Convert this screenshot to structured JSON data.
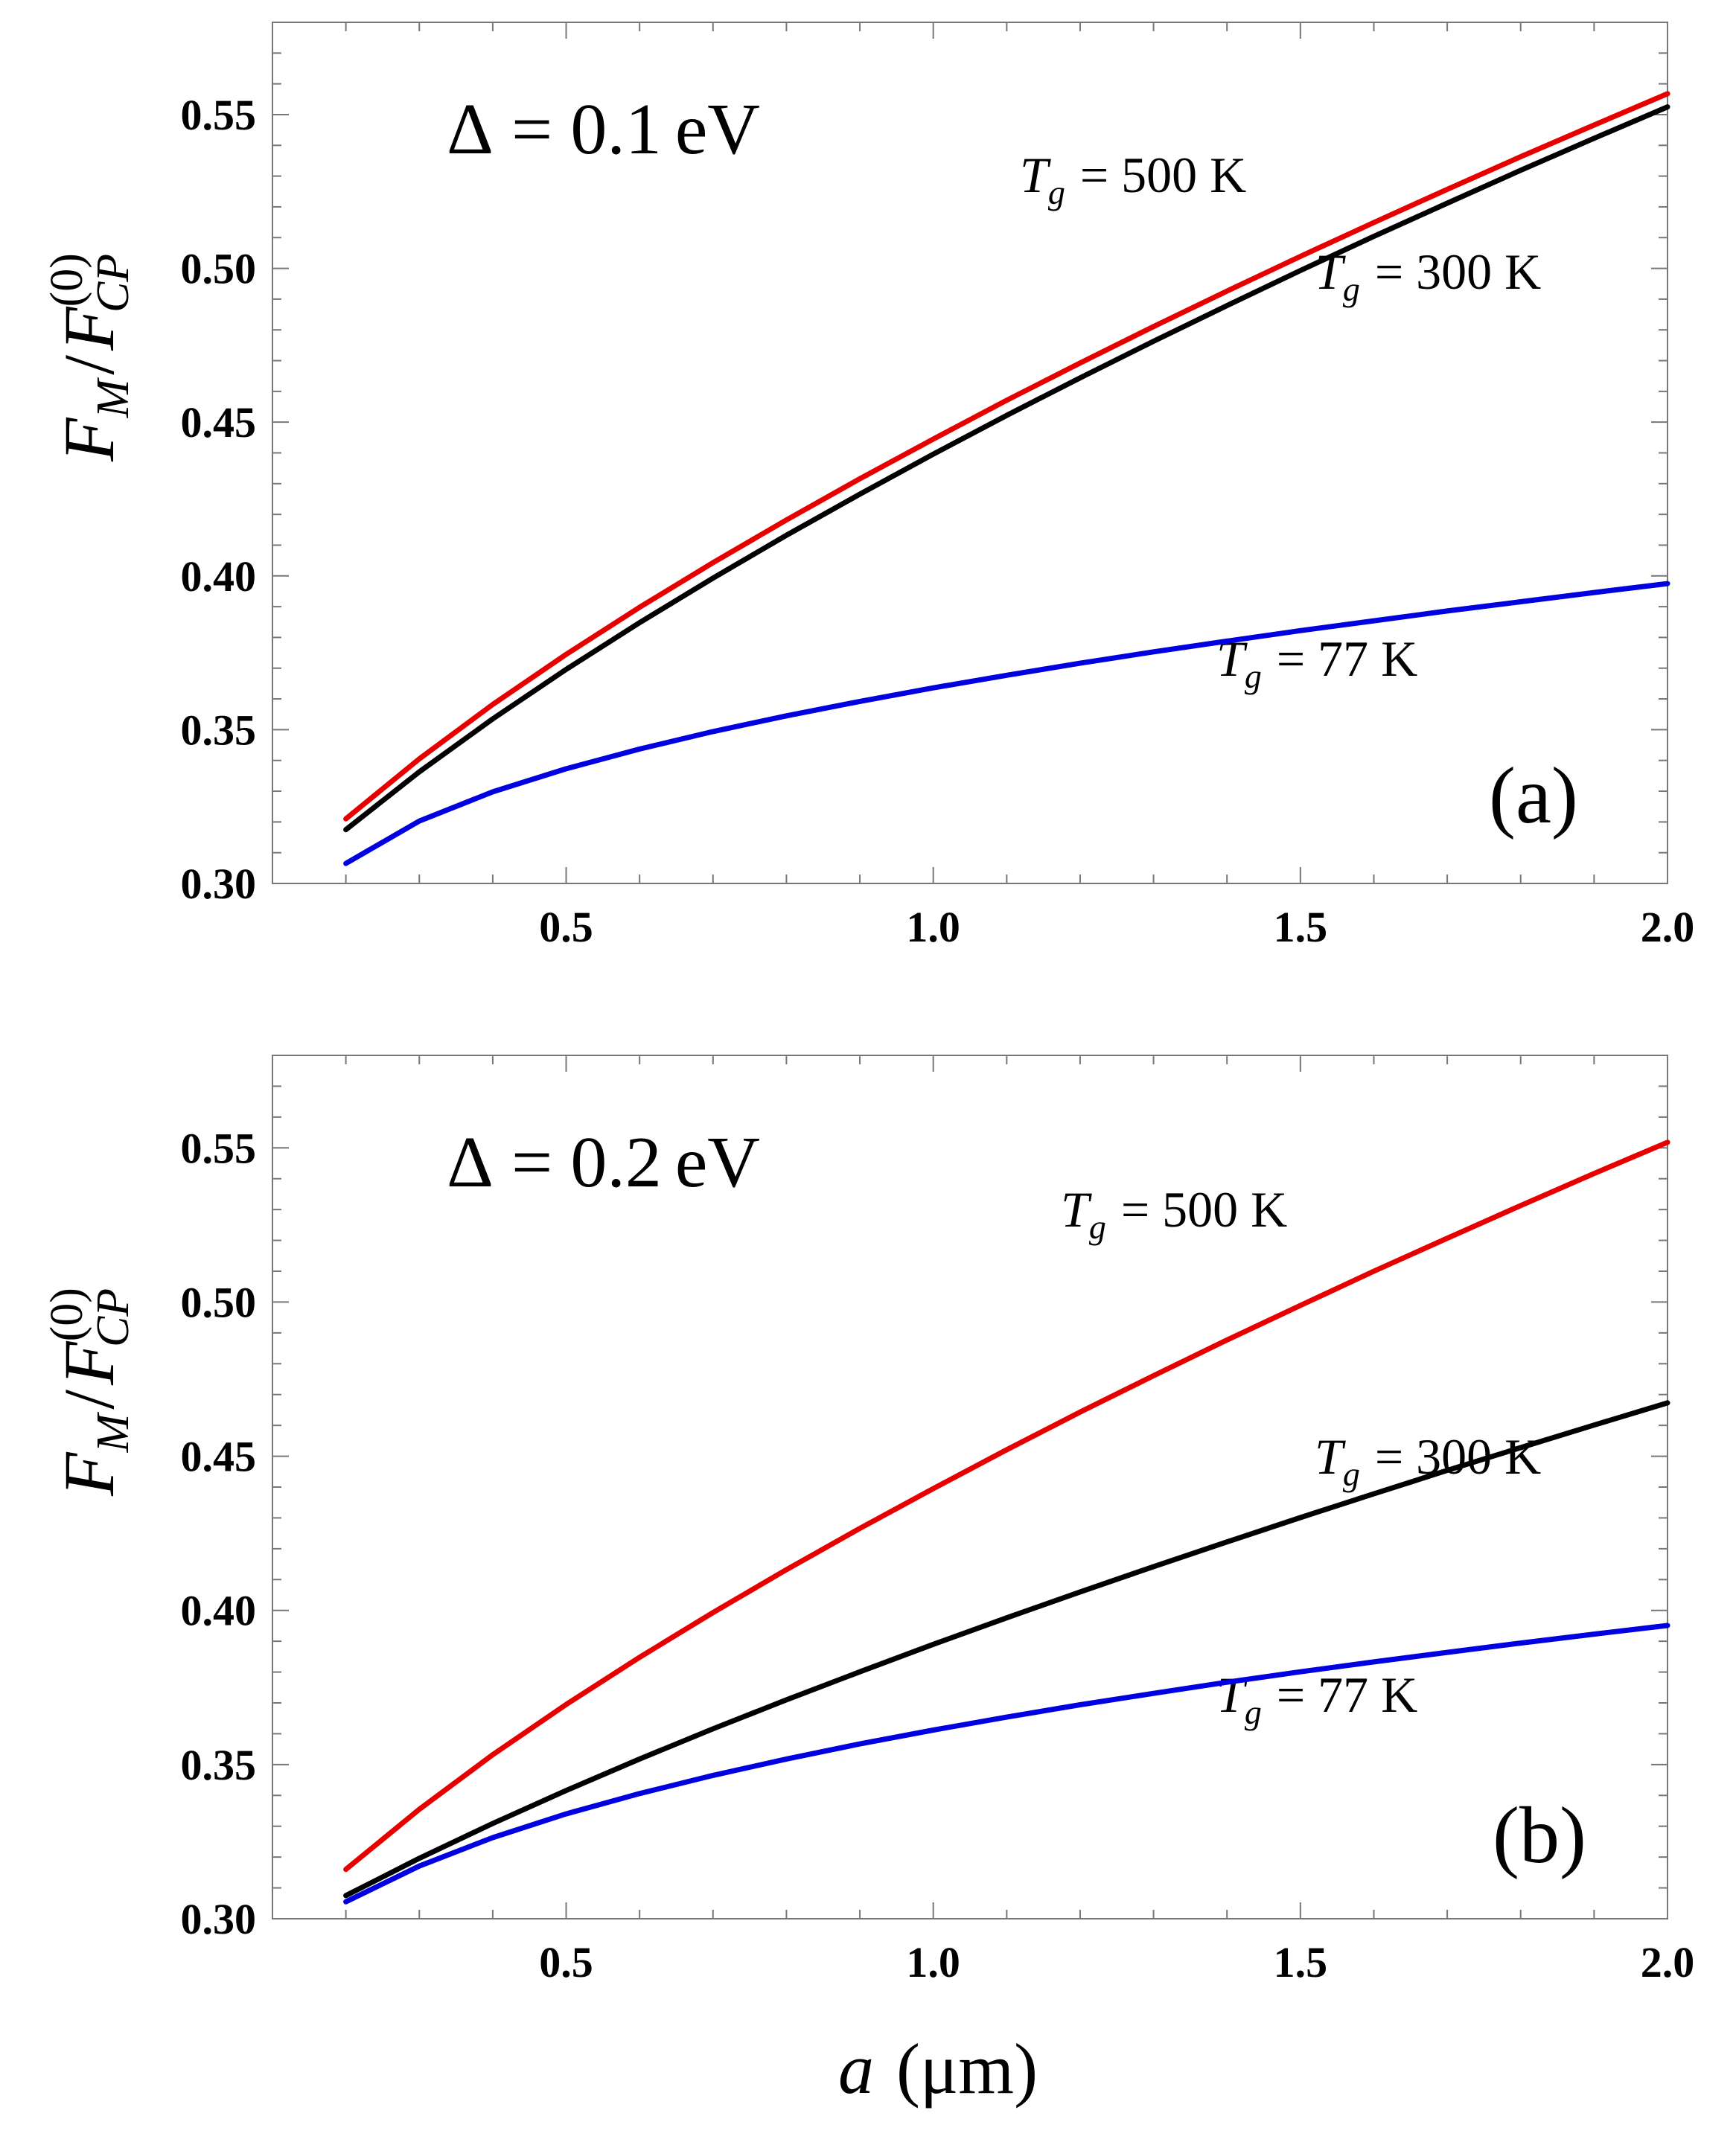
{
  "figure": {
    "x_axis_label_var": "a",
    "x_axis_label_unit": "(μm)",
    "y_axis_label_num": "F",
    "y_axis_label_num_sub": "M",
    "y_axis_label_slash": "/",
    "y_axis_label_den": "F",
    "y_axis_label_den_sup": "(0)",
    "y_axis_label_den_sub": "CP"
  },
  "chart_data": [
    {
      "type": "line",
      "panel_label": "(a)",
      "annotation": "Δ = 0.1 eV",
      "annotation_parts": {
        "symbol": "Δ",
        "eq": "=",
        "value": "0.1",
        "unit": "eV"
      },
      "xlim": [
        0.1,
        2.0
      ],
      "ylim": [
        0.3,
        0.58
      ],
      "xticks": [
        "0.5",
        "1.0",
        "1.5",
        "2.0"
      ],
      "yticks": [
        "0.30",
        "0.35",
        "0.40",
        "0.45",
        "0.50",
        "0.55"
      ],
      "xlabel": "a (μm)",
      "ylabel": "F_M / F_CP^(0)",
      "series": [
        {
          "name": "T_g = 500 K",
          "label_var": "T",
          "label_sub": "g",
          "label_rest": "= 500 K",
          "color": "#e80000",
          "x": [
            0.2,
            0.3,
            0.4,
            0.5,
            0.6,
            0.7,
            0.8,
            0.9,
            1.0,
            1.1,
            1.2,
            1.3,
            1.4,
            1.5,
            1.6,
            1.7,
            1.8,
            1.9,
            2.0
          ],
          "y": [
            0.321,
            0.3405,
            0.3582,
            0.3745,
            0.3898,
            0.4043,
            0.4182,
            0.4316,
            0.4445,
            0.4571,
            0.4692,
            0.4811,
            0.4926,
            0.5039,
            0.5149,
            0.5257,
            0.5363,
            0.5466,
            0.5568
          ]
        },
        {
          "name": "T_g = 300 K",
          "label_var": "T",
          "label_sub": "g",
          "label_rest": "= 300 K",
          "color": "#000000",
          "x": [
            0.2,
            0.3,
            0.4,
            0.5,
            0.6,
            0.7,
            0.8,
            0.9,
            1.0,
            1.1,
            1.2,
            1.3,
            1.4,
            1.5,
            1.6,
            1.7,
            1.8,
            1.9,
            2.0
          ],
          "y": [
            0.3175,
            0.3363,
            0.3535,
            0.3696,
            0.3848,
            0.3993,
            0.4132,
            0.4266,
            0.4396,
            0.4522,
            0.4644,
            0.4763,
            0.4879,
            0.4993,
            0.5104,
            0.5212,
            0.5319,
            0.5423,
            0.5525
          ]
        },
        {
          "name": "T_g = 77 K",
          "label_var": "T",
          "label_sub": "g",
          "label_rest": "= 77 K",
          "color": "#0000e0",
          "x": [
            0.2,
            0.3,
            0.4,
            0.5,
            0.6,
            0.7,
            0.8,
            0.9,
            1.0,
            1.1,
            1.2,
            1.3,
            1.4,
            1.5,
            1.6,
            1.7,
            1.8,
            1.9,
            2.0
          ],
          "y": [
            0.3065,
            0.3203,
            0.3298,
            0.3373,
            0.3437,
            0.3494,
            0.3545,
            0.3592,
            0.3636,
            0.3677,
            0.3716,
            0.3753,
            0.3788,
            0.3822,
            0.3854,
            0.3886,
            0.3916,
            0.3946,
            0.3975
          ]
        }
      ]
    },
    {
      "type": "line",
      "panel_label": "(b)",
      "annotation": "Δ = 0.2 eV",
      "annotation_parts": {
        "symbol": "Δ",
        "eq": "=",
        "value": "0.2",
        "unit": "eV"
      },
      "xlim": [
        0.1,
        2.0
      ],
      "ylim": [
        0.3,
        0.58
      ],
      "xticks": [
        "0.5",
        "1.0",
        "1.5",
        "2.0"
      ],
      "yticks": [
        "0.30",
        "0.35",
        "0.40",
        "0.45",
        "0.50",
        "0.55"
      ],
      "xlabel": "a (μm)",
      "ylabel": "F_M / F_CP^(0)",
      "series": [
        {
          "name": "T_g = 500 K",
          "label_var": "T",
          "label_sub": "g",
          "label_rest": "= 500 K",
          "color": "#e80000",
          "x": [
            0.2,
            0.3,
            0.4,
            0.5,
            0.6,
            0.7,
            0.8,
            0.9,
            1.0,
            1.1,
            1.2,
            1.3,
            1.4,
            1.5,
            1.6,
            1.7,
            1.8,
            1.9,
            2.0
          ],
          "y": [
            0.316,
            0.3355,
            0.3532,
            0.3695,
            0.3848,
            0.3993,
            0.4132,
            0.4266,
            0.4395,
            0.4521,
            0.4643,
            0.4761,
            0.4877,
            0.4989,
            0.51,
            0.5207,
            0.5313,
            0.5417,
            0.5518
          ]
        },
        {
          "name": "T_g = 300 K",
          "label_var": "T",
          "label_sub": "g",
          "label_rest": "= 300 K",
          "color": "#000000",
          "x": [
            0.2,
            0.3,
            0.4,
            0.5,
            0.6,
            0.7,
            0.8,
            0.9,
            1.0,
            1.1,
            1.2,
            1.3,
            1.4,
            1.5,
            1.6,
            1.7,
            1.8,
            1.9,
            2.0
          ],
          "y": [
            0.3075,
            0.3196,
            0.3309,
            0.3416,
            0.3518,
            0.3616,
            0.371,
            0.3801,
            0.389,
            0.3976,
            0.406,
            0.4142,
            0.4222,
            0.4301,
            0.4378,
            0.4454,
            0.4528,
            0.4601,
            0.4673
          ]
        },
        {
          "name": "T_g = 77 K",
          "label_var": "T",
          "label_sub": "g",
          "label_rest": "= 77 K",
          "color": "#0000e0",
          "x": [
            0.2,
            0.3,
            0.4,
            0.5,
            0.6,
            0.7,
            0.8,
            0.9,
            1.0,
            1.1,
            1.2,
            1.3,
            1.4,
            1.5,
            1.6,
            1.7,
            1.8,
            1.9,
            2.0
          ],
          "y": [
            0.3055,
            0.3171,
            0.3263,
            0.334,
            0.3406,
            0.3465,
            0.3518,
            0.3567,
            0.3612,
            0.3654,
            0.3694,
            0.3731,
            0.3767,
            0.3801,
            0.3833,
            0.3864,
            0.3894,
            0.3923,
            0.3951
          ]
        }
      ]
    }
  ]
}
